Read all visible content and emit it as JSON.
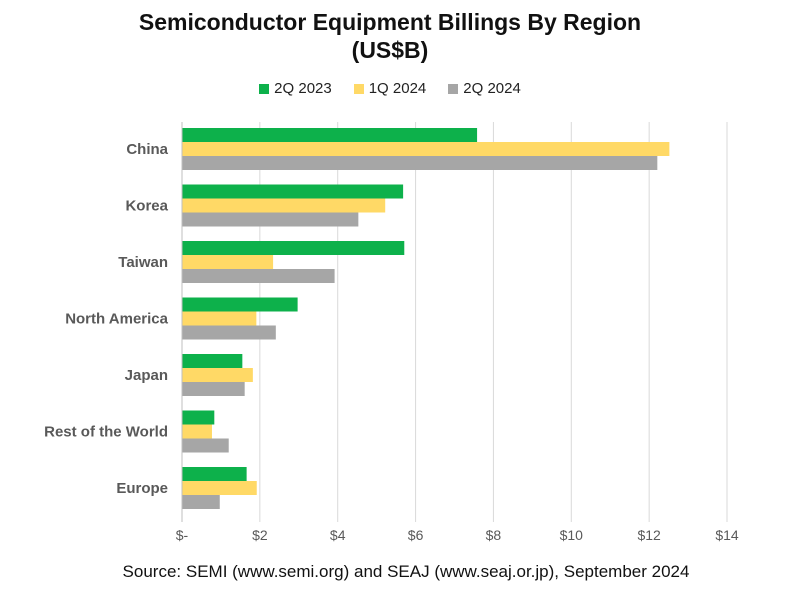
{
  "chart_data": {
    "type": "bar",
    "orientation": "horizontal",
    "title": "Semiconductor Equipment Billings By Region",
    "subtitle": "(US$B)",
    "categories": [
      "China",
      "Korea",
      "Taiwan",
      "North America",
      "Japan",
      "Rest of the World",
      "Europe"
    ],
    "series": [
      {
        "name": "2Q 2023",
        "color": "#0DB14B",
        "values": [
          7.58,
          5.68,
          5.71,
          2.97,
          1.55,
          0.83,
          1.66
        ]
      },
      {
        "name": "1Q 2024",
        "color": "#FFD966",
        "values": [
          12.52,
          5.22,
          2.34,
          1.91,
          1.82,
          0.77,
          1.92
        ]
      },
      {
        "name": "2Q 2024",
        "color": "#A6A6A6",
        "values": [
          12.21,
          4.53,
          3.92,
          2.41,
          1.61,
          1.2,
          0.97
        ]
      }
    ],
    "xlim": [
      0,
      14
    ],
    "xticks": [
      0,
      2,
      4,
      6,
      8,
      10,
      12,
      14
    ],
    "xtick_labels": [
      "$-",
      "$2",
      "$4",
      "$6",
      "$8",
      "$10",
      "$12",
      "$14"
    ],
    "grid": "vertical",
    "legend_position": "top",
    "source": "Source: SEMI (www.semi.org) and SEAJ (www.seaj.or.jp), September 2024"
  }
}
